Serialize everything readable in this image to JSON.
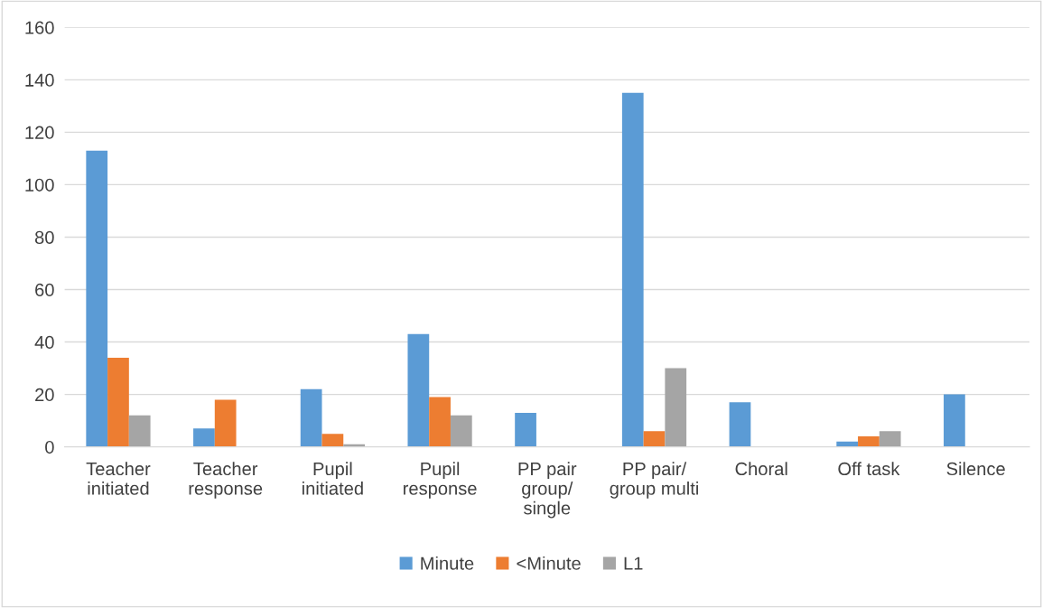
{
  "chart_data": {
    "type": "bar",
    "categories": [
      "Teacher\ninitiated",
      "Teacher\nresponse",
      "Pupil\ninitiated",
      "Pupil\nresponse",
      "PP pair\ngroup/\nsingle",
      "PP pair/\ngroup multi",
      "Choral",
      "Off task",
      "Silence"
    ],
    "series": [
      {
        "name": "Minute",
        "color": "#5b9bd5",
        "values": [
          113,
          7,
          22,
          43,
          13,
          135,
          17,
          2,
          20
        ]
      },
      {
        "name": "<Minute",
        "color": "#ed7d31",
        "values": [
          34,
          18,
          5,
          19,
          0,
          6,
          0,
          4,
          0
        ]
      },
      {
        "name": "L1",
        "color": "#a5a5a5",
        "values": [
          12,
          0,
          1,
          12,
          0,
          30,
          0,
          6,
          0
        ]
      }
    ],
    "ylim": [
      0,
      160
    ],
    "yticks": [
      0,
      20,
      40,
      60,
      80,
      100,
      120,
      140,
      160
    ],
    "grid": "y",
    "legend": "bottom"
  }
}
